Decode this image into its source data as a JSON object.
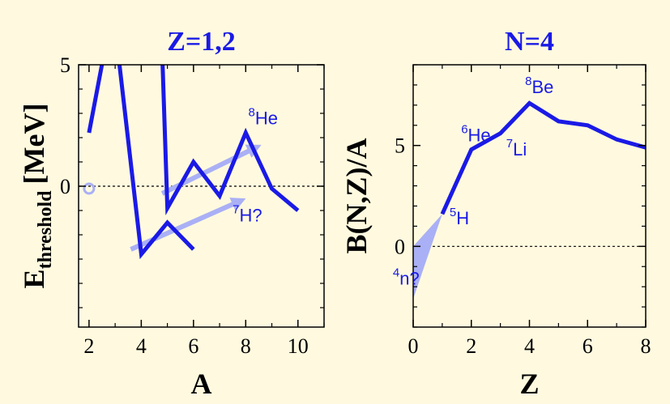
{
  "colors": {
    "background": "#fffadf",
    "line": "#1a1ae6",
    "title": "#1a1ae6",
    "arrow": "#aab0f5",
    "axis": "#000000"
  },
  "chart_data": [
    {
      "type": "line",
      "title": "Z=1,2",
      "xlabel": "A",
      "ylabel_main": "E",
      "ylabel_sub": "threshold",
      "ylabel_unit": "[MeV]",
      "xlim": [
        1.6,
        11.0
      ],
      "ylim": [
        -5.8,
        5.0
      ],
      "xticks": [
        2,
        4,
        6,
        8,
        10
      ],
      "yticks": [
        0,
        5
      ],
      "zero_line": true,
      "series": [
        {
          "x": [
            2,
            2.6,
            3.1,
            4,
            5,
            6
          ],
          "y": [
            2.2,
            5.6,
            5.6,
            -2.8,
            -1.5,
            -2.6
          ]
        },
        {
          "x": [
            4.8,
            5,
            6,
            7,
            8,
            9,
            10
          ],
          "y": [
            5.6,
            -0.9,
            1.0,
            -0.4,
            2.2,
            -0.1,
            -1.0
          ]
        }
      ],
      "marker_point": {
        "x": 2,
        "y": -0.1
      },
      "arrows": [
        {
          "x1": 3.6,
          "y1": -2.6,
          "x2": 7.8,
          "y2": -0.6
        },
        {
          "x1": 4.8,
          "y1": -0.3,
          "x2": 8.4,
          "y2": 1.6
        }
      ],
      "annotations": [
        {
          "base": "8",
          "text": "He",
          "x": 8.1,
          "y": 2.55
        },
        {
          "base": "7",
          "text": "H?",
          "x": 7.5,
          "y": -1.45
        }
      ]
    },
    {
      "type": "line",
      "title": "N=4",
      "xlabel": "Z",
      "ylabel": "B(N,Z)/A",
      "xlim": [
        0,
        8
      ],
      "ylim": [
        -4,
        9
      ],
      "xticks": [
        0,
        2,
        4,
        6,
        8
      ],
      "yticks": [
        0,
        5
      ],
      "zero_line": true,
      "series": [
        {
          "x": [
            1,
            2,
            3,
            4,
            5,
            6,
            7,
            8
          ],
          "y": [
            1.6,
            4.8,
            5.6,
            7.1,
            6.2,
            6.0,
            5.3,
            4.9
          ]
        }
      ],
      "shaded_triangle": [
        [
          0,
          0.0
        ],
        [
          0,
          -2.6
        ],
        [
          1,
          1.6
        ]
      ],
      "annotations": [
        {
          "base": "8",
          "text": "Be",
          "x": 3.85,
          "y": 7.6
        },
        {
          "base": "6",
          "text": "He",
          "x": 1.65,
          "y": 5.2
        },
        {
          "base": "7",
          "text": "Li",
          "x": 3.2,
          "y": 4.5
        },
        {
          "base": "5",
          "text": "H",
          "x": 1.25,
          "y": 1.1
        },
        {
          "base": "4",
          "text": "n?",
          "x": -0.7,
          "y": -1.9
        }
      ]
    }
  ]
}
